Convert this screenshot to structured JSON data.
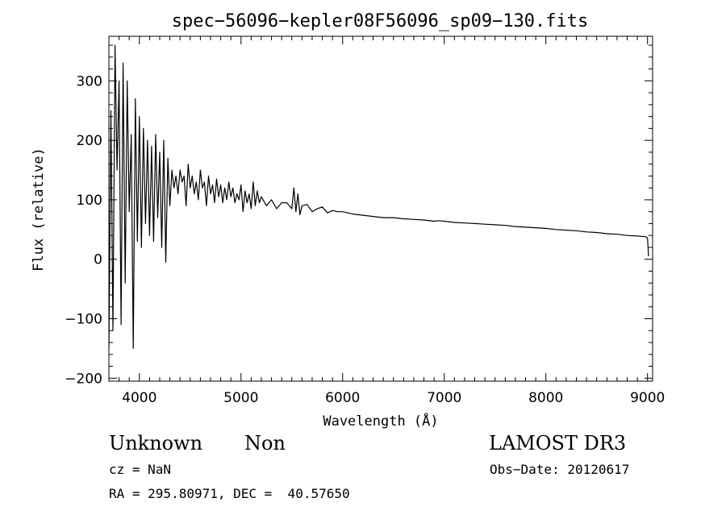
{
  "chart_data": {
    "type": "line",
    "title": "spec−56096−kepler08F56096_sp09−130.fits",
    "xlabel": "Wavelength (Å)",
    "ylabel": "Flux (relative)",
    "xlim": [
      3700,
      9050
    ],
    "ylim": [
      -205,
      375
    ],
    "xticks": [
      4000,
      5000,
      6000,
      7000,
      8000,
      9000
    ],
    "xtick_labels": [
      "4000",
      "5000",
      "6000",
      "7000",
      "8000",
      "9000"
    ],
    "yticks": [
      -200,
      -100,
      0,
      100,
      200,
      300
    ],
    "ytick_labels": [
      "−200",
      "−100",
      "0",
      "100",
      "200",
      "300"
    ],
    "grid": false,
    "series": [
      {
        "name": "flux",
        "x": [
          3700,
          3720,
          3740,
          3760,
          3780,
          3800,
          3820,
          3840,
          3860,
          3880,
          3900,
          3920,
          3940,
          3960,
          3980,
          4000,
          4020,
          4040,
          4060,
          4080,
          4100,
          4120,
          4140,
          4160,
          4180,
          4200,
          4220,
          4240,
          4260,
          4280,
          4300,
          4320,
          4340,
          4360,
          4380,
          4400,
          4420,
          4440,
          4460,
          4480,
          4500,
          4520,
          4540,
          4560,
          4580,
          4600,
          4620,
          4640,
          4660,
          4680,
          4700,
          4720,
          4740,
          4760,
          4780,
          4800,
          4820,
          4840,
          4860,
          4880,
          4900,
          4920,
          4940,
          4960,
          4980,
          5000,
          5020,
          5040,
          5060,
          5080,
          5100,
          5120,
          5140,
          5160,
          5180,
          5200,
          5250,
          5300,
          5350,
          5400,
          5450,
          5500,
          5520,
          5540,
          5560,
          5580,
          5600,
          5650,
          5700,
          5750,
          5800,
          5850,
          5900,
          5950,
          6000,
          6100,
          6200,
          6300,
          6400,
          6500,
          6600,
          6700,
          6800,
          6900,
          6950,
          7000,
          7100,
          7200,
          7300,
          7400,
          7500,
          7600,
          7700,
          7800,
          7900,
          8000,
          8100,
          8200,
          8300,
          8400,
          8500,
          8600,
          8700,
          8800,
          8900,
          8980,
          9000,
          9010
        ],
        "y": [
          -150,
          250,
          -120,
          360,
          150,
          300,
          -110,
          330,
          -40,
          300,
          80,
          210,
          -150,
          270,
          30,
          240,
          20,
          220,
          60,
          200,
          40,
          190,
          30,
          210,
          70,
          180,
          20,
          200,
          -5,
          170,
          90,
          150,
          120,
          140,
          110,
          150,
          130,
          140,
          90,
          160,
          120,
          140,
          110,
          130,
          100,
          150,
          120,
          130,
          90,
          140,
          110,
          125,
          95,
          135,
          105,
          125,
          95,
          120,
          100,
          130,
          105,
          120,
          95,
          110,
          100,
          125,
          80,
          115,
          95,
          110,
          85,
          130,
          90,
          115,
          95,
          105,
          90,
          100,
          85,
          95,
          95,
          85,
          120,
          80,
          110,
          75,
          90,
          92,
          80,
          85,
          88,
          78,
          82,
          80,
          80,
          76,
          74,
          72,
          70,
          70,
          68,
          67,
          66,
          64,
          65,
          64,
          62,
          61,
          60,
          59,
          58,
          57,
          55,
          54,
          53,
          52,
          50,
          49,
          48,
          46,
          45,
          43,
          42,
          40,
          39,
          38,
          36,
          5
        ]
      }
    ]
  },
  "info": {
    "obj_class": "Unknown",
    "obj_subclass": "Non",
    "survey": "LAMOST DR3",
    "cz": "cz = NaN",
    "obs_date": "Obs−Date: 20120617",
    "radec": "RA = 295.80971, DEC =  40.57650"
  }
}
